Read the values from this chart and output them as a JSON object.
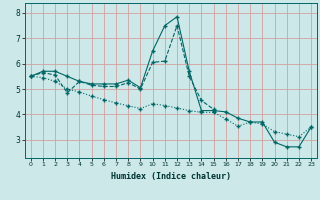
{
  "xlabel": "Humidex (Indice chaleur)",
  "xlim": [
    -0.5,
    23.5
  ],
  "ylim": [
    2.3,
    8.4
  ],
  "xticks": [
    0,
    1,
    2,
    3,
    4,
    5,
    6,
    7,
    8,
    9,
    10,
    11,
    12,
    13,
    14,
    15,
    16,
    17,
    18,
    19,
    20,
    21,
    22,
    23
  ],
  "yticks": [
    3,
    4,
    5,
    6,
    7,
    8
  ],
  "bg_color": "#cce8e8",
  "line_color": "#006666",
  "grid_color": "#d4a0a0",
  "line1_x": [
    0,
    1,
    2,
    3,
    4,
    5,
    6,
    7,
    8,
    9,
    10,
    11,
    12,
    13,
    14,
    15,
    16,
    17,
    18,
    19,
    20,
    21,
    22,
    23
  ],
  "line1_y": [
    5.5,
    5.7,
    5.7,
    5.5,
    5.3,
    5.2,
    5.2,
    5.2,
    5.35,
    5.05,
    6.5,
    7.5,
    7.85,
    5.7,
    4.15,
    4.15,
    4.1,
    3.85,
    3.7,
    3.7,
    2.9,
    2.72,
    2.72,
    3.5
  ],
  "line2_x": [
    0,
    1,
    2,
    3,
    4,
    5,
    6,
    7,
    8,
    9,
    10,
    11,
    12,
    13,
    14,
    15
  ],
  "line2_y": [
    5.5,
    5.65,
    5.55,
    4.85,
    5.3,
    5.15,
    5.1,
    5.1,
    5.25,
    5.0,
    6.05,
    6.1,
    7.5,
    5.5,
    4.55,
    4.2
  ],
  "line3_x": [
    0,
    1,
    2,
    3,
    4,
    5,
    6,
    7,
    8,
    9,
    10,
    11,
    12,
    13,
    14,
    15,
    16,
    17,
    18,
    19,
    20,
    21,
    22,
    23
  ],
  "line3_y": [
    5.5,
    5.45,
    5.3,
    5.0,
    4.88,
    4.72,
    4.58,
    4.45,
    4.34,
    4.23,
    4.42,
    4.35,
    4.25,
    4.15,
    4.08,
    4.08,
    3.82,
    3.53,
    3.7,
    3.62,
    3.32,
    3.22,
    3.12,
    3.5
  ]
}
